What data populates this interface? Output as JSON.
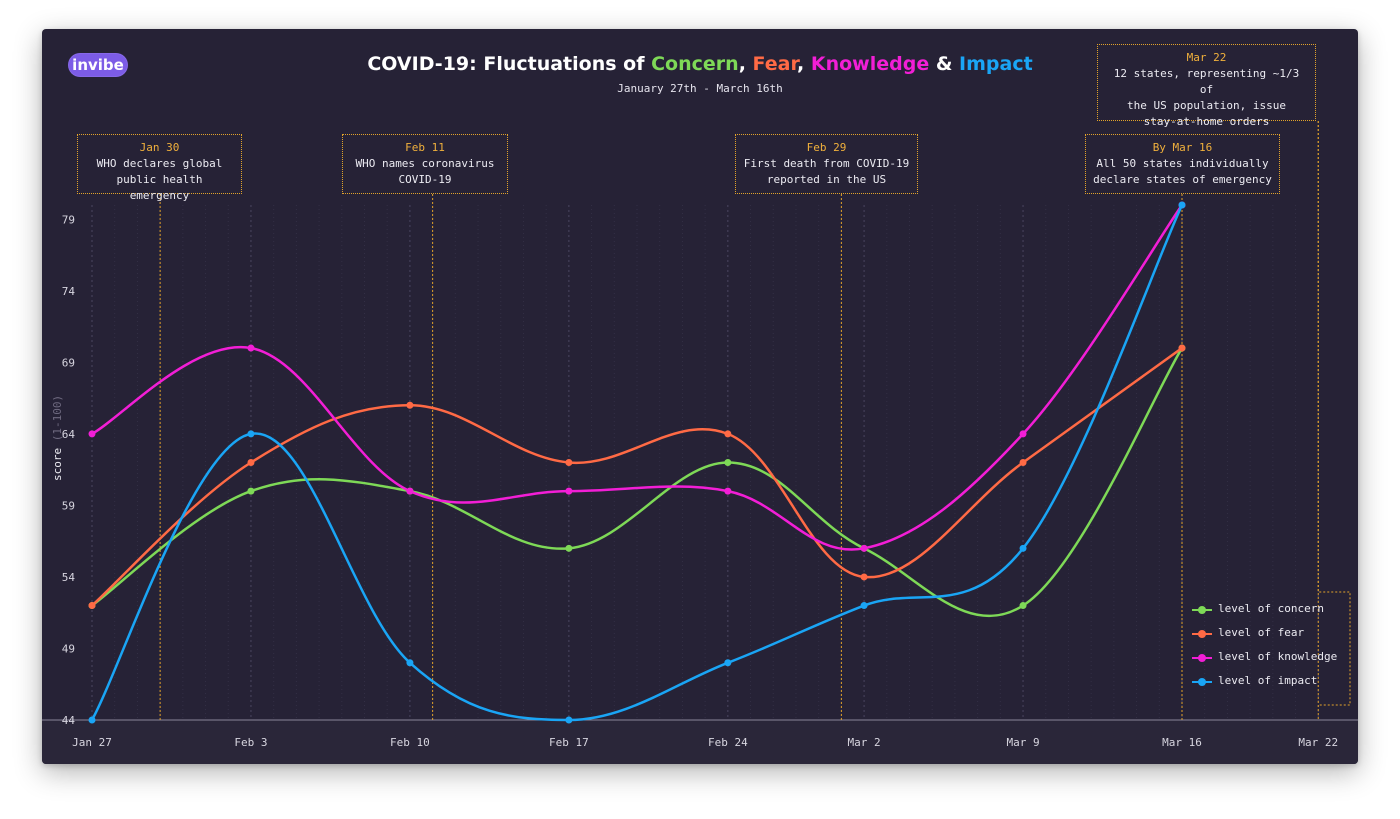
{
  "header": {
    "logo": "invibe",
    "title_prefix": "COVID-19: Fluctuations of ",
    "title_concern": "Concern",
    "title_sep1": ", ",
    "title_fear": "Fear",
    "title_sep2": ", ",
    "title_knowledge": "Knowledge",
    "title_amp": " & ",
    "title_impact": "Impact",
    "subtitle": "January 27th - March 16th"
  },
  "colors": {
    "background": "#262236",
    "concern": "#7ed957",
    "fear": "#ff6a45",
    "knowledge": "#f21ed6",
    "impact": "#1aa5f5",
    "annotation": "#e2a32a"
  },
  "annotations": [
    {
      "date": "Jan 30",
      "line1": "WHO declares global",
      "line2": "public health emergency"
    },
    {
      "date": "Feb 11",
      "line1": "WHO names coronavirus",
      "line2": "COVID-19"
    },
    {
      "date": "Feb 29",
      "line1": "First death from COVID-19",
      "line2": "reported in the US"
    },
    {
      "date": "By Mar 16",
      "line1": "All 50 states individually",
      "line2": "declare states of emergency"
    },
    {
      "date": "Mar 22",
      "line1": "12 states, representing ~1/3 of",
      "line2": "the US population, issue",
      "line3": "stay-at-home orders"
    }
  ],
  "chart_data": {
    "type": "line",
    "title": "COVID-19: Fluctuations of Concern, Fear, Knowledge & Impact",
    "subtitle": "January 27th - March 16th",
    "ylabel": "score",
    "ylabel_sub": "(1-100)",
    "ylim": [
      44,
      80
    ],
    "yticks": [
      44,
      49,
      54,
      59,
      64,
      69,
      74,
      79
    ],
    "x": [
      0,
      7,
      14,
      21,
      28,
      34,
      41,
      48
    ],
    "xlim": [
      0,
      54
    ],
    "xtick_days": [
      0,
      7,
      14,
      21,
      28,
      34,
      41,
      48,
      54
    ],
    "xtick_labels": [
      "Jan 27",
      "Feb 3",
      "Feb 10",
      "Feb 17",
      "Feb 24",
      "Mar 2",
      "Mar 9",
      "Mar 16",
      "Mar 22"
    ],
    "event_days": [
      3,
      15,
      33,
      48,
      54
    ],
    "legend_position": "bottom-right",
    "series": [
      {
        "name": "level of concern",
        "key": "concern",
        "values": [
          52,
          60,
          60,
          56,
          62,
          56,
          52,
          70
        ]
      },
      {
        "name": "level of fear",
        "key": "fear",
        "values": [
          52,
          62,
          66,
          62,
          64,
          54,
          62,
          70
        ]
      },
      {
        "name": "level of knowledge",
        "key": "knowledge",
        "values": [
          64,
          70,
          60,
          60,
          60,
          56,
          64,
          80
        ]
      },
      {
        "name": "level of impact",
        "key": "impact",
        "values": [
          44,
          64,
          48,
          44,
          48,
          52,
          56,
          80
        ]
      }
    ]
  }
}
